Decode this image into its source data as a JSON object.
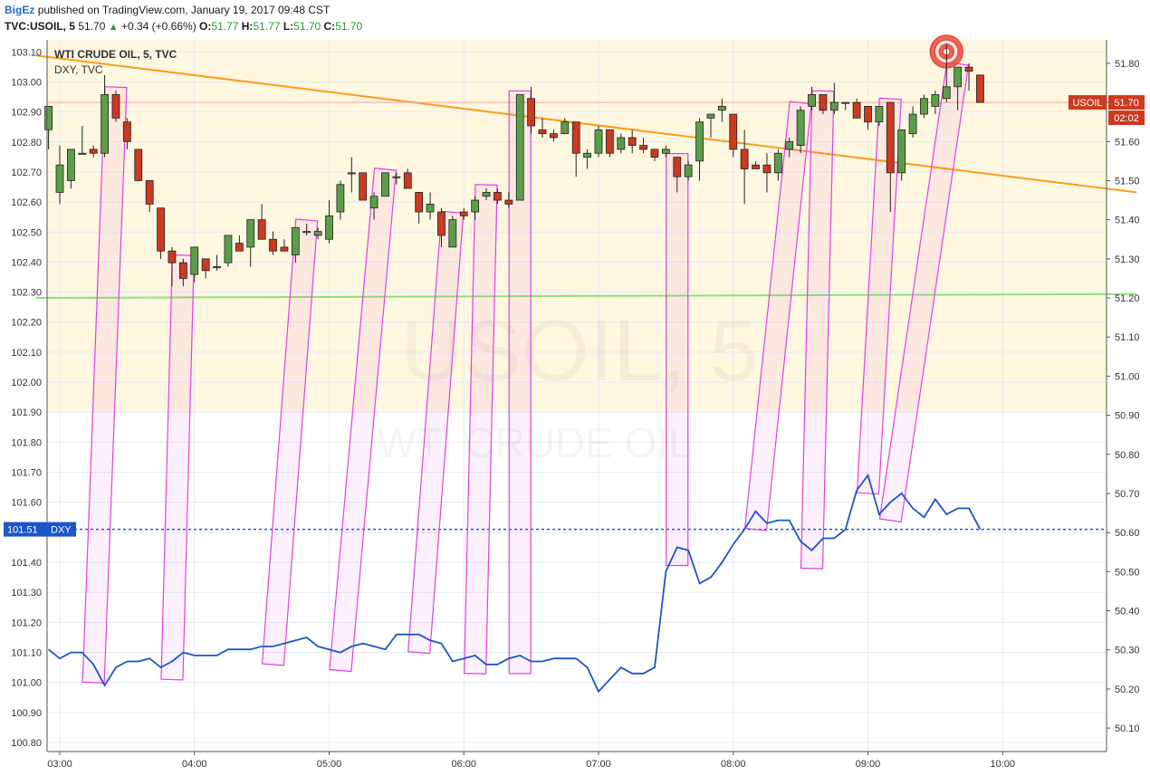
{
  "header": {
    "author": "BigEz",
    "published_text": "published on TradingView.com, January 19, 2017 09:48 CST"
  },
  "ohlc": {
    "symbol": "TVC:USOIL, 5",
    "last": "51.70",
    "change": "+0.34 (+0.66%)",
    "o_label": "O:",
    "o": "51.77",
    "h_label": "H:",
    "h": "51.77",
    "l_label": "L:",
    "l": "51.70",
    "c_label": "C:",
    "c": "51.70"
  },
  "legend": {
    "main": "WTI CRUDE OIL, 5, TVC",
    "second": "DXY, TVC"
  },
  "watermark": {
    "symbol": "USOIL, 5",
    "name": "WTI CRUDE OIL"
  },
  "colors": {
    "up": "#5b9e4a",
    "down": "#cc3a1f",
    "dxy": "#1a56c8",
    "trend": "#ff9a1c",
    "support": "#8ee07a",
    "zone": "#fff7e0",
    "highlight": "#e040e0",
    "target": "#e74c3c"
  },
  "price_tags": {
    "usoil_name": "USOIL",
    "usoil_price": "51.70",
    "countdown": "02:02",
    "dxy_name": "DXY",
    "dxy_price": "101.51"
  },
  "chart_data": {
    "type": "candlestick",
    "title": "WTI CRUDE OIL, 5, TVC",
    "x_ticks": [
      "03:00",
      "04:00",
      "05:00",
      "06:00",
      "07:00",
      "08:00",
      "09:00",
      "10:00"
    ],
    "y_right_label": "USOIL",
    "y_right_ticks": [
      "51.80",
      "51.70",
      "51.60",
      "51.50",
      "51.40",
      "51.30",
      "51.20",
      "51.10",
      "51.00",
      "50.90",
      "50.80",
      "50.70",
      "50.60",
      "50.50",
      "50.40",
      "50.30",
      "50.20",
      "50.10"
    ],
    "y_right_range": [
      50.04,
      51.86
    ],
    "y_left_label": "DXY",
    "y_left_ticks": [
      "103.10",
      "103.00",
      "102.90",
      "102.80",
      "102.70",
      "102.60",
      "102.50",
      "102.40",
      "102.30",
      "102.20",
      "102.10",
      "102.00",
      "101.90",
      "101.80",
      "101.70",
      "101.60",
      "101.50",
      "101.40",
      "101.30",
      "101.20",
      "101.10",
      "101.00",
      "100.90",
      "100.80"
    ],
    "y_left_range": [
      100.77,
      103.14
    ],
    "usoil_candles": [
      {
        "t": "02:55",
        "o": 51.63,
        "h": 51.69,
        "l": 51.58,
        "c": 51.69
      },
      {
        "t": "03:00",
        "o": 51.47,
        "h": 51.59,
        "l": 51.44,
        "c": 51.54
      },
      {
        "t": "03:05",
        "o": 51.5,
        "h": 51.58,
        "l": 51.48,
        "c": 51.58
      },
      {
        "t": "03:10",
        "o": 51.57,
        "h": 51.64,
        "l": 51.57,
        "c": 51.57
      },
      {
        "t": "03:15",
        "o": 51.58,
        "h": 51.59,
        "l": 51.56,
        "c": 51.57
      },
      {
        "t": "03:20",
        "o": 51.57,
        "h": 51.77,
        "l": 51.56,
        "c": 51.72
      },
      {
        "t": "03:25",
        "o": 51.72,
        "h": 51.73,
        "l": 51.65,
        "c": 51.66
      },
      {
        "t": "03:30",
        "o": 51.65,
        "h": 51.66,
        "l": 51.58,
        "c": 51.6
      },
      {
        "t": "03:35",
        "o": 51.58,
        "h": 51.58,
        "l": 51.5,
        "c": 51.5
      },
      {
        "t": "03:40",
        "o": 51.5,
        "h": 51.5,
        "l": 51.42,
        "c": 51.44
      },
      {
        "t": "03:45",
        "o": 51.43,
        "h": 51.43,
        "l": 51.3,
        "c": 51.32
      },
      {
        "t": "03:50",
        "o": 51.32,
        "h": 51.33,
        "l": 51.23,
        "c": 51.29
      },
      {
        "t": "03:55",
        "o": 51.29,
        "h": 51.3,
        "l": 51.23,
        "c": 51.25
      },
      {
        "t": "04:00",
        "o": 51.26,
        "h": 51.33,
        "l": 51.24,
        "c": 51.33
      },
      {
        "t": "04:05",
        "o": 51.3,
        "h": 51.3,
        "l": 51.25,
        "c": 51.27
      },
      {
        "t": "04:10",
        "o": 51.28,
        "h": 51.31,
        "l": 51.27,
        "c": 51.28
      },
      {
        "t": "04:15",
        "o": 51.29,
        "h": 51.36,
        "l": 51.28,
        "c": 51.36
      },
      {
        "t": "04:20",
        "o": 51.34,
        "h": 51.36,
        "l": 51.32,
        "c": 51.32
      },
      {
        "t": "04:25",
        "o": 51.33,
        "h": 51.4,
        "l": 51.28,
        "c": 51.4
      },
      {
        "t": "04:30",
        "o": 51.4,
        "h": 51.44,
        "l": 51.35,
        "c": 51.35
      },
      {
        "t": "04:35",
        "o": 51.35,
        "h": 51.37,
        "l": 51.31,
        "c": 51.32
      },
      {
        "t": "04:40",
        "o": 51.33,
        "h": 51.35,
        "l": 51.32,
        "c": 51.32
      },
      {
        "t": "04:45",
        "o": 51.31,
        "h": 51.38,
        "l": 51.29,
        "c": 51.38
      },
      {
        "t": "04:50",
        "o": 51.37,
        "h": 51.39,
        "l": 51.36,
        "c": 51.37
      },
      {
        "t": "04:55",
        "o": 51.36,
        "h": 51.38,
        "l": 51.35,
        "c": 51.37
      },
      {
        "t": "05:00",
        "o": 51.35,
        "h": 51.45,
        "l": 51.34,
        "c": 51.41
      },
      {
        "t": "05:05",
        "o": 51.42,
        "h": 51.5,
        "l": 51.4,
        "c": 51.49
      },
      {
        "t": "05:10",
        "o": 51.52,
        "h": 51.56,
        "l": 51.47,
        "c": 51.52
      },
      {
        "t": "05:15",
        "o": 51.52,
        "h": 51.52,
        "l": 51.45,
        "c": 51.45
      },
      {
        "t": "05:20",
        "o": 51.43,
        "h": 51.47,
        "l": 51.4,
        "c": 51.46
      },
      {
        "t": "05:25",
        "o": 51.46,
        "h": 51.52,
        "l": 51.46,
        "c": 51.52
      },
      {
        "t": "05:30",
        "o": 51.51,
        "h": 51.52,
        "l": 51.49,
        "c": 51.51
      },
      {
        "t": "05:35",
        "o": 51.52,
        "h": 51.53,
        "l": 51.48,
        "c": 51.48
      },
      {
        "t": "05:40",
        "o": 51.47,
        "h": 51.47,
        "l": 51.39,
        "c": 51.42
      },
      {
        "t": "05:45",
        "o": 51.42,
        "h": 51.47,
        "l": 51.4,
        "c": 51.44
      },
      {
        "t": "05:50",
        "o": 51.42,
        "h": 51.43,
        "l": 51.33,
        "c": 51.36
      },
      {
        "t": "05:55",
        "o": 51.33,
        "h": 51.41,
        "l": 51.33,
        "c": 51.4
      },
      {
        "t": "06:00",
        "o": 51.42,
        "h": 51.43,
        "l": 51.4,
        "c": 51.41
      },
      {
        "t": "06:05",
        "o": 51.42,
        "h": 51.46,
        "l": 51.4,
        "c": 51.45
      },
      {
        "t": "06:10",
        "o": 51.46,
        "h": 51.48,
        "l": 51.45,
        "c": 51.47
      },
      {
        "t": "06:15",
        "o": 51.47,
        "h": 51.48,
        "l": 51.44,
        "c": 51.45
      },
      {
        "t": "06:20",
        "o": 51.45,
        "h": 51.47,
        "l": 51.43,
        "c": 51.44
      },
      {
        "t": "06:25",
        "o": 51.45,
        "h": 51.72,
        "l": 51.45,
        "c": 51.72
      },
      {
        "t": "06:30",
        "o": 51.71,
        "h": 51.74,
        "l": 51.62,
        "c": 51.64
      },
      {
        "t": "06:35",
        "o": 51.63,
        "h": 51.66,
        "l": 51.61,
        "c": 51.62
      },
      {
        "t": "06:40",
        "o": 51.62,
        "h": 51.63,
        "l": 51.6,
        "c": 51.61
      },
      {
        "t": "06:45",
        "o": 51.62,
        "h": 51.66,
        "l": 51.62,
        "c": 51.65
      },
      {
        "t": "06:50",
        "o": 51.65,
        "h": 51.65,
        "l": 51.51,
        "c": 51.57
      },
      {
        "t": "06:55",
        "o": 51.56,
        "h": 51.58,
        "l": 51.53,
        "c": 51.57
      },
      {
        "t": "07:00",
        "o": 51.57,
        "h": 51.64,
        "l": 51.56,
        "c": 51.63
      },
      {
        "t": "07:05",
        "o": 51.63,
        "h": 51.63,
        "l": 51.56,
        "c": 51.57
      },
      {
        "t": "07:10",
        "o": 51.58,
        "h": 51.62,
        "l": 51.57,
        "c": 51.61
      },
      {
        "t": "07:15",
        "o": 51.61,
        "h": 51.63,
        "l": 51.57,
        "c": 51.59
      },
      {
        "t": "07:20",
        "o": 51.59,
        "h": 51.61,
        "l": 51.57,
        "c": 51.58
      },
      {
        "t": "07:25",
        "o": 51.58,
        "h": 51.58,
        "l": 51.55,
        "c": 51.56
      },
      {
        "t": "07:30",
        "o": 51.57,
        "h": 51.59,
        "l": 51.56,
        "c": 51.58
      },
      {
        "t": "07:35",
        "o": 51.56,
        "h": 51.56,
        "l": 51.47,
        "c": 51.51
      },
      {
        "t": "07:40",
        "o": 51.51,
        "h": 51.55,
        "l": 51.5,
        "c": 51.54
      },
      {
        "t": "07:45",
        "o": 51.55,
        "h": 51.66,
        "l": 51.5,
        "c": 51.65
      },
      {
        "t": "07:50",
        "o": 51.66,
        "h": 51.67,
        "l": 51.61,
        "c": 51.67
      },
      {
        "t": "07:55",
        "o": 51.68,
        "h": 51.71,
        "l": 51.65,
        "c": 51.69
      },
      {
        "t": "08:00",
        "o": 51.67,
        "h": 51.67,
        "l": 51.56,
        "c": 51.58
      },
      {
        "t": "08:05",
        "o": 51.58,
        "h": 51.63,
        "l": 51.44,
        "c": 51.53
      },
      {
        "t": "08:10",
        "o": 51.54,
        "h": 51.55,
        "l": 51.53,
        "c": 51.53
      },
      {
        "t": "08:15",
        "o": 51.54,
        "h": 51.57,
        "l": 51.47,
        "c": 51.52
      },
      {
        "t": "08:20",
        "o": 51.52,
        "h": 51.58,
        "l": 51.5,
        "c": 51.57
      },
      {
        "t": "08:25",
        "o": 51.58,
        "h": 51.61,
        "l": 51.56,
        "c": 51.6
      },
      {
        "t": "08:30",
        "o": 51.59,
        "h": 51.69,
        "l": 51.57,
        "c": 51.68
      },
      {
        "t": "08:35",
        "o": 51.69,
        "h": 51.74,
        "l": 51.68,
        "c": 51.72
      },
      {
        "t": "08:40",
        "o": 51.72,
        "h": 51.72,
        "l": 51.67,
        "c": 51.68
      },
      {
        "t": "08:45",
        "o": 51.68,
        "h": 51.75,
        "l": 51.67,
        "c": 51.7
      },
      {
        "t": "08:50",
        "o": 51.7,
        "h": 51.7,
        "l": 51.68,
        "c": 51.7
      },
      {
        "t": "08:55",
        "o": 51.7,
        "h": 51.71,
        "l": 51.67,
        "c": 51.66
      },
      {
        "t": "09:00",
        "o": 51.69,
        "h": 51.69,
        "l": 51.63,
        "c": 51.65
      },
      {
        "t": "09:05",
        "o": 51.65,
        "h": 51.69,
        "l": 51.64,
        "c": 51.69
      },
      {
        "t": "09:10",
        "o": 51.7,
        "h": 51.7,
        "l": 51.42,
        "c": 51.52
      },
      {
        "t": "09:15",
        "o": 51.52,
        "h": 51.59,
        "l": 51.5,
        "c": 51.63
      },
      {
        "t": "09:20",
        "o": 51.62,
        "h": 51.69,
        "l": 51.61,
        "c": 51.67
      },
      {
        "t": "09:25",
        "o": 51.67,
        "h": 51.72,
        "l": 51.66,
        "c": 51.71
      },
      {
        "t": "09:30",
        "o": 51.69,
        "h": 51.73,
        "l": 51.67,
        "c": 51.72
      },
      {
        "t": "09:35",
        "o": 51.71,
        "h": 51.85,
        "l": 51.7,
        "c": 51.74
      },
      {
        "t": "09:40",
        "o": 51.74,
        "h": 51.79,
        "l": 51.68,
        "c": 51.79
      },
      {
        "t": "09:45",
        "o": 51.79,
        "h": 51.8,
        "l": 51.73,
        "c": 51.78
      },
      {
        "t": "09:50",
        "o": 51.77,
        "h": 51.77,
        "l": 51.7,
        "c": 51.7
      }
    ],
    "dxy_line": [
      {
        "t": "02:55",
        "v": 101.11
      },
      {
        "t": "03:00",
        "v": 101.08
      },
      {
        "t": "03:05",
        "v": 101.1
      },
      {
        "t": "03:10",
        "v": 101.1
      },
      {
        "t": "03:15",
        "v": 101.06
      },
      {
        "t": "03:20",
        "v": 100.99
      },
      {
        "t": "03:25",
        "v": 101.05
      },
      {
        "t": "03:30",
        "v": 101.07
      },
      {
        "t": "03:35",
        "v": 101.07
      },
      {
        "t": "03:40",
        "v": 101.08
      },
      {
        "t": "03:45",
        "v": 101.05
      },
      {
        "t": "03:50",
        "v": 101.07
      },
      {
        "t": "03:55",
        "v": 101.1
      },
      {
        "t": "04:00",
        "v": 101.09
      },
      {
        "t": "04:05",
        "v": 101.09
      },
      {
        "t": "04:10",
        "v": 101.09
      },
      {
        "t": "04:15",
        "v": 101.11
      },
      {
        "t": "04:20",
        "v": 101.11
      },
      {
        "t": "04:25",
        "v": 101.11
      },
      {
        "t": "04:30",
        "v": 101.12
      },
      {
        "t": "04:35",
        "v": 101.12
      },
      {
        "t": "04:40",
        "v": 101.13
      },
      {
        "t": "04:45",
        "v": 101.14
      },
      {
        "t": "04:50",
        "v": 101.15
      },
      {
        "t": "04:55",
        "v": 101.12
      },
      {
        "t": "05:00",
        "v": 101.11
      },
      {
        "t": "05:05",
        "v": 101.1
      },
      {
        "t": "05:10",
        "v": 101.12
      },
      {
        "t": "05:15",
        "v": 101.13
      },
      {
        "t": "05:20",
        "v": 101.12
      },
      {
        "t": "05:25",
        "v": 101.11
      },
      {
        "t": "05:30",
        "v": 101.16
      },
      {
        "t": "05:35",
        "v": 101.16
      },
      {
        "t": "05:40",
        "v": 101.16
      },
      {
        "t": "05:45",
        "v": 101.14
      },
      {
        "t": "05:50",
        "v": 101.13
      },
      {
        "t": "05:55",
        "v": 101.07
      },
      {
        "t": "06:00",
        "v": 101.08
      },
      {
        "t": "06:05",
        "v": 101.09
      },
      {
        "t": "06:10",
        "v": 101.06
      },
      {
        "t": "06:15",
        "v": 101.06
      },
      {
        "t": "06:20",
        "v": 101.08
      },
      {
        "t": "06:25",
        "v": 101.09
      },
      {
        "t": "06:30",
        "v": 101.07
      },
      {
        "t": "06:35",
        "v": 101.07
      },
      {
        "t": "06:40",
        "v": 101.08
      },
      {
        "t": "06:45",
        "v": 101.08
      },
      {
        "t": "06:50",
        "v": 101.08
      },
      {
        "t": "06:55",
        "v": 101.05
      },
      {
        "t": "07:00",
        "v": 100.97
      },
      {
        "t": "07:05",
        "v": 101.01
      },
      {
        "t": "07:10",
        "v": 101.05
      },
      {
        "t": "07:15",
        "v": 101.03
      },
      {
        "t": "07:20",
        "v": 101.03
      },
      {
        "t": "07:25",
        "v": 101.05
      },
      {
        "t": "07:30",
        "v": 101.37
      },
      {
        "t": "07:35",
        "v": 101.45
      },
      {
        "t": "07:40",
        "v": 101.44
      },
      {
        "t": "07:45",
        "v": 101.33
      },
      {
        "t": "07:50",
        "v": 101.35
      },
      {
        "t": "07:55",
        "v": 101.4
      },
      {
        "t": "08:00",
        "v": 101.46
      },
      {
        "t": "08:05",
        "v": 101.51
      },
      {
        "t": "08:10",
        "v": 101.57
      },
      {
        "t": "08:15",
        "v": 101.53
      },
      {
        "t": "08:20",
        "v": 101.54
      },
      {
        "t": "08:25",
        "v": 101.54
      },
      {
        "t": "08:30",
        "v": 101.47
      },
      {
        "t": "08:35",
        "v": 101.44
      },
      {
        "t": "08:40",
        "v": 101.48
      },
      {
        "t": "08:45",
        "v": 101.48
      },
      {
        "t": "08:50",
        "v": 101.51
      },
      {
        "t": "08:55",
        "v": 101.64
      },
      {
        "t": "09:00",
        "v": 101.69
      },
      {
        "t": "09:05",
        "v": 101.56
      },
      {
        "t": "09:10",
        "v": 101.6
      },
      {
        "t": "09:15",
        "v": 101.63
      },
      {
        "t": "09:20",
        "v": 101.58
      },
      {
        "t": "09:25",
        "v": 101.55
      },
      {
        "t": "09:30",
        "v": 101.61
      },
      {
        "t": "09:35",
        "v": 101.56
      },
      {
        "t": "09:40",
        "v": 101.58
      },
      {
        "t": "09:45",
        "v": 101.58
      },
      {
        "t": "09:50",
        "v": 101.51
      }
    ],
    "drawings": {
      "trendline_usoil": [
        {
          "t": "02:55",
          "v": 51.82
        },
        {
          "t": "10:50",
          "v": 51.47
        }
      ],
      "support_usoil": [
        {
          "t": "02:55",
          "v": 51.2
        },
        {
          "t": "10:50",
          "v": 51.21
        }
      ],
      "zone_usoil": [
        50.91,
        51.86
      ],
      "target_usoil": {
        "t": "09:35",
        "v": 51.83
      }
    }
  }
}
